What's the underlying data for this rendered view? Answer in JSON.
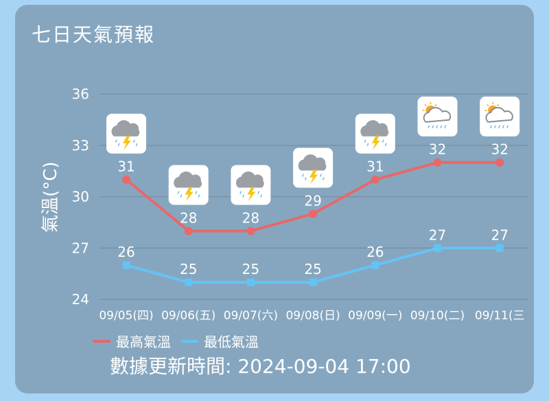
{
  "title": "七日天氣預報",
  "colors": {
    "high": "#e8686a",
    "low": "#64c3f5",
    "grid": "#7891a6"
  },
  "legend": {
    "high": "最高氣溫",
    "low": "最低氣溫"
  },
  "updated": "數據更新時間: 2024-09-04 17:00",
  "chart_data": {
    "type": "line",
    "ylabel": "氣溫(°C)",
    "ylim": [
      24,
      36
    ],
    "yticks": [
      24,
      27,
      30,
      33,
      36
    ],
    "categories": [
      "09/05(四)",
      "09/06(五)",
      "09/07(六)",
      "09/08(日)",
      "09/09(一)",
      "09/10(二)",
      "09/11(三"
    ],
    "series": [
      {
        "name": "最高氣溫",
        "values": [
          31,
          28,
          28,
          29,
          31,
          32,
          32
        ]
      },
      {
        "name": "最低氣溫",
        "values": [
          26,
          25,
          25,
          25,
          26,
          27,
          27
        ]
      }
    ],
    "icons": [
      "thunderstorm-icon",
      "thunderstorm-icon",
      "thunderstorm-icon",
      "thunderstorm-icon",
      "thunderstorm-icon",
      "sun-cloud-rain-icon",
      "sun-cloud-rain-icon"
    ],
    "legend_position": "bottom-left"
  }
}
